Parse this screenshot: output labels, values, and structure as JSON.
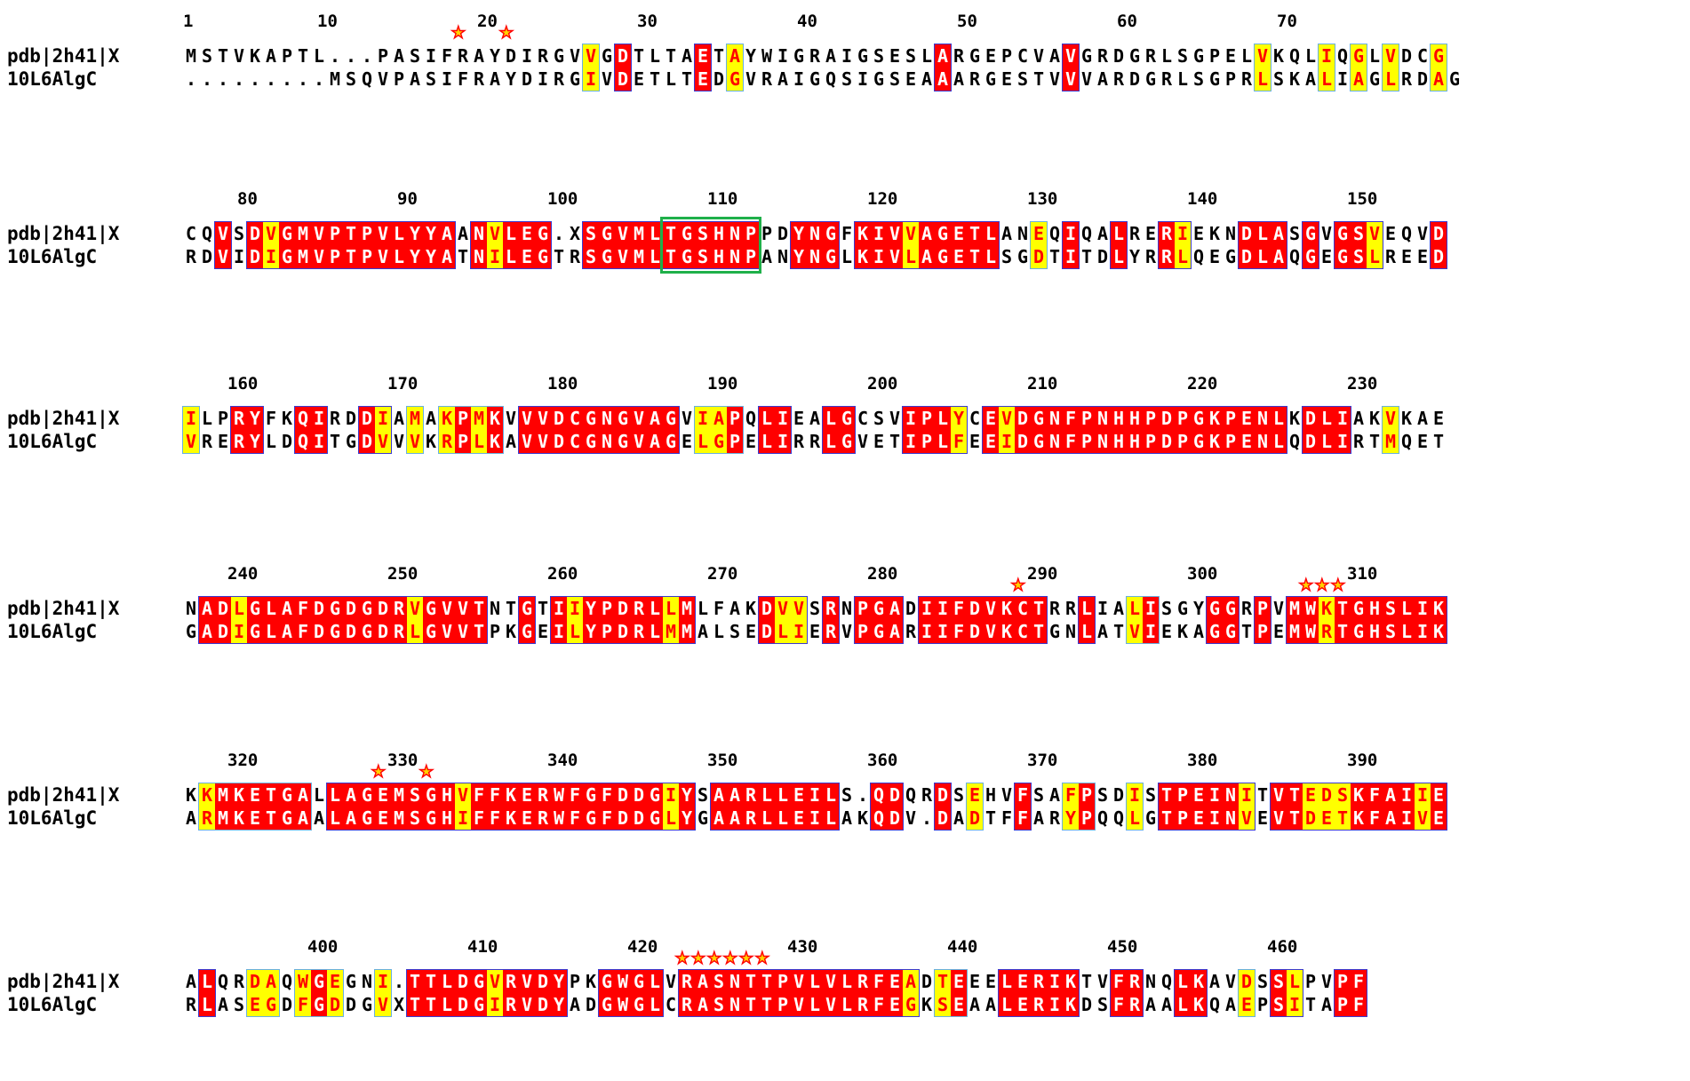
{
  "alignment": {
    "seq_names": [
      "pdb|2h41|X",
      "10L6AlgC"
    ],
    "line_width": 61,
    "ruler_start_col": 10,
    "colors": {
      "identical_bg": "#ff0000",
      "identical_fg": "#ffffff",
      "similar_bg": "#ffff00",
      "similar_fg": "#ff0000",
      "motif_box": "#1fb04a",
      "star": "#ffd400"
    },
    "blocks": [
      {
        "s1": "MSTVKAPTL...PASIFRAYDIRGVVGDTLTAETAYWIGRAIGSESLARGEPCVAVGRDGRLSGPELVKQLIQGLVDCG",
        "s2": ".........MSQVPASIFRAYDIRGIVDETLTEDGVRAIGQSIGSEAAARGESTVVVARDGRLSGPRLSKALIAGLRDAG",
        "mask": "...............................................................................",
        "ticks": [
          {
            "label": "1",
            "col": 0
          },
          {
            "label": "10",
            "col": 9
          },
          {
            "label": "20",
            "col": 19
          },
          {
            "label": "30",
            "col": 29
          },
          {
            "label": "40",
            "col": 39
          },
          {
            "label": "50",
            "col": 49
          },
          {
            "label": "60",
            "col": 59
          },
          {
            "label": "70",
            "col": 69
          }
        ],
        "stars": [
          17,
          20
        ]
      },
      {
        "s1": "CQVSDVGMVPTPVLYYAANVLEG.XSGVMLTGSHNPPDYNGFKIVVAGETLANEQIQALRERIEKNDLASGVGSVEQVD",
        "s2": "RDVIDIGMVPTPVLYYATNILEGTRSGVMLTGSHNPANYNGLKIVLAGETLSGDTITDLYRRLQEGDLAQGEGSLREED",
        "ticks": [
          {
            "label": "80",
            "col": 4
          },
          {
            "label": "90",
            "col": 14
          },
          {
            "label": "100",
            "col": 24
          },
          {
            "label": "110",
            "col": 34
          },
          {
            "label": "120",
            "col": 44
          },
          {
            "label": "130",
            "col": 54
          },
          {
            "label": "140",
            "col": 64
          },
          {
            "label": "150",
            "col": 74
          }
        ],
        "stars": [],
        "motif": [
          30,
          35
        ]
      },
      {
        "s1": "ILPRYFKQIRDDIAMAKPMKVVVDCGNGVAGVIAPQLIEALGCSVIPLYCEVDGNFPNHHPDPGKPENLKDLIAKVKAE",
        "s2": "VRERYLDQITGDVVVKRPLKAVVDCGNGVAGELGPELIRRLGVETIPLFEEIDGNFPNHHPDPGKPENLQDLIRTMQET",
        "ticks": [
          {
            "label": "160",
            "col": 4
          },
          {
            "label": "170",
            "col": 14
          },
          {
            "label": "180",
            "col": 24
          },
          {
            "label": "190",
            "col": 34
          },
          {
            "label": "200",
            "col": 44
          },
          {
            "label": "210",
            "col": 54
          },
          {
            "label": "220",
            "col": 64
          },
          {
            "label": "230",
            "col": 74
          }
        ],
        "stars": []
      },
      {
        "s1": "NADLGLAFDGDGDRVGVVTNTGTIIYPDRLLMLFAKDVVSRNPGADIIFDVKCTRRLIALISGYGGRPVMWKTGHSLIK",
        "s2": "GADIGLAFDGDGDRLGVVTPKGEILYPDRLMMALSEDLIERVPGARIIFDVKCTGNLATVIEKAGGTPEMWRTGHSLIK",
        "ticks": [
          {
            "label": "240",
            "col": 4
          },
          {
            "label": "250",
            "col": 14
          },
          {
            "label": "260",
            "col": 24
          },
          {
            "label": "270",
            "col": 34
          },
          {
            "label": "280",
            "col": 44
          },
          {
            "label": "290",
            "col": 54
          },
          {
            "label": "300",
            "col": 64
          },
          {
            "label": "310",
            "col": 74
          }
        ],
        "stars": [
          52,
          70,
          71,
          72
        ]
      },
      {
        "s1": "KKMKETGALLAGEMSGHVFFKERWFGFDDGIYSAARLLEILS.QDQRDSEHVFSAFPSDISTPEINITVTEDSKFAIIE",
        "s2": "ARMKETGAALAGEMSGHIFFKERWFGFDDGLYGAARLLEILAKQDV.DADTFFARYPQQLGTPEINVEVTDETKFAIVE",
        "ticks": [
          {
            "label": "320",
            "col": 4
          },
          {
            "label": "330",
            "col": 14
          },
          {
            "label": "340",
            "col": 24
          },
          {
            "label": "350",
            "col": 34
          },
          {
            "label": "360",
            "col": 44
          },
          {
            "label": "370",
            "col": 54
          },
          {
            "label": "380",
            "col": 64
          },
          {
            "label": "390",
            "col": 74
          }
        ],
        "stars": [
          12,
          15
        ]
      },
      {
        "s1": "ALQRDAQWGEGNI.TTLDGVRVDYPKGWGLVRASNTTPVLVLRFEADTEEELERIKTVFRNQLKAVDSSLPVPF",
        "s2": "RLASEGDFGDDGVXTTLDGIRVDYADGWGLCRASNTTPVLVLRFEGKSEAALERIKDSFRAALKQAEPSITAPF",
        "ticks": [
          {
            "label": "400",
            "col": 9
          },
          {
            "label": "410",
            "col": 19
          },
          {
            "label": "420",
            "col": 29
          },
          {
            "label": "430",
            "col": 39
          },
          {
            "label": "440",
            "col": 49
          },
          {
            "label": "450",
            "col": 59
          },
          {
            "label": "460",
            "col": 69
          }
        ],
        "stars": [
          31,
          32,
          33,
          34,
          35,
          36
        ]
      }
    ]
  }
}
